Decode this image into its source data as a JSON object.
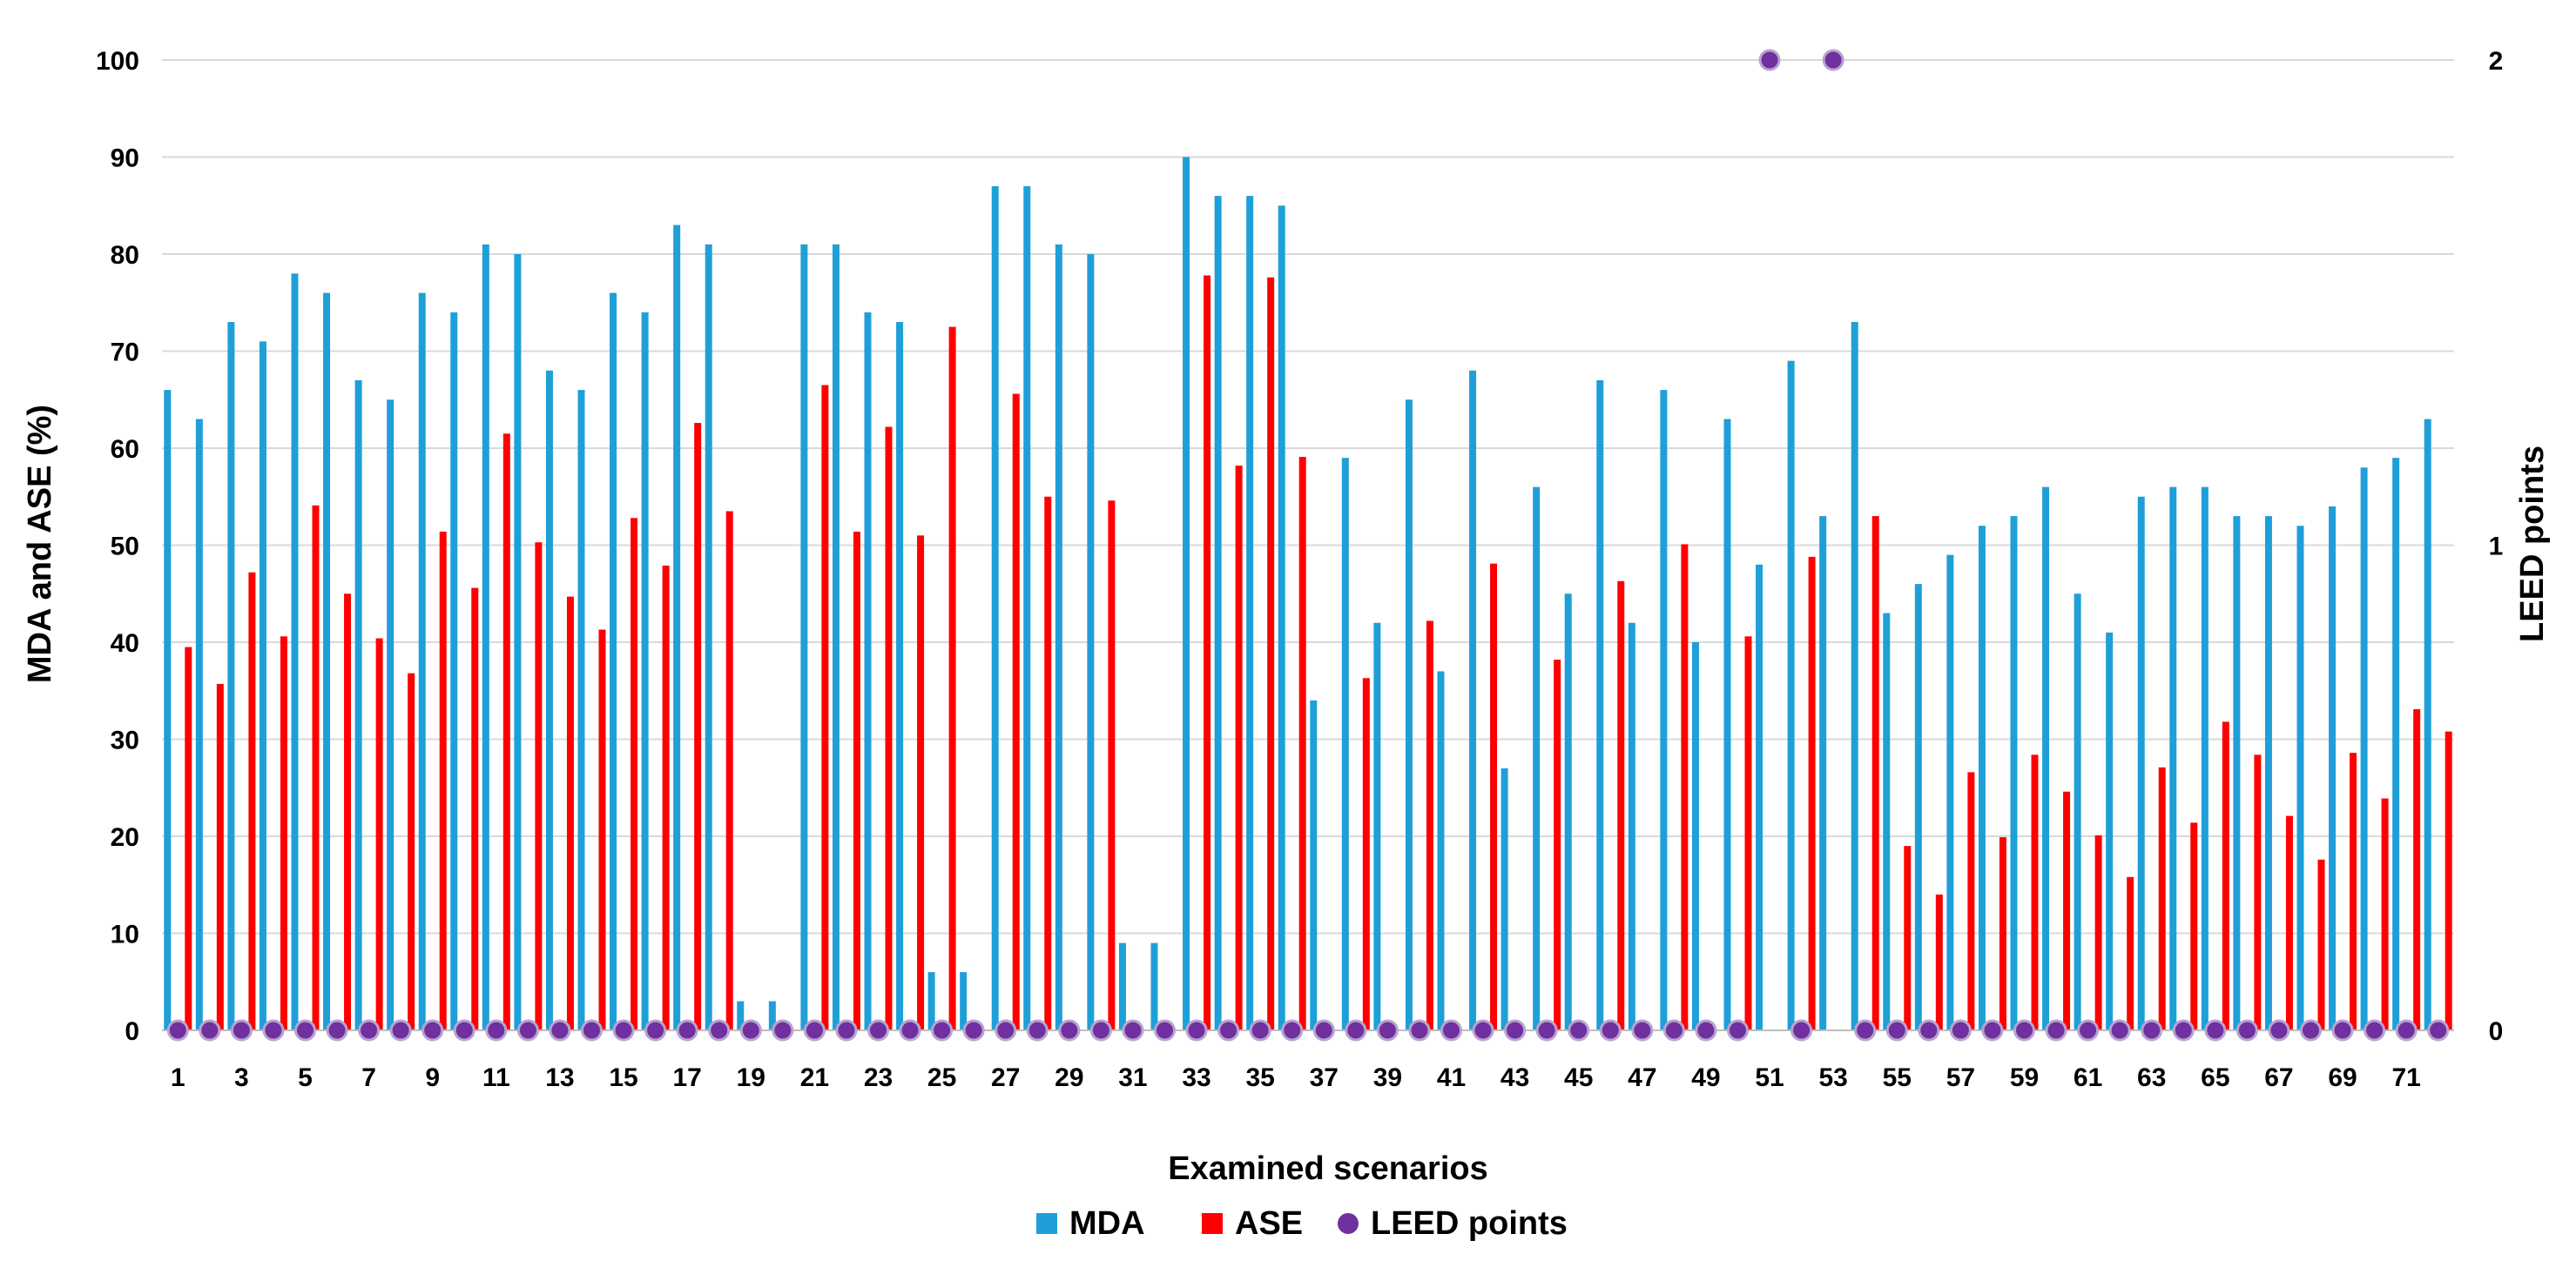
{
  "chart_data": {
    "type": "bar",
    "xlabel": "Examined scenarios",
    "ylabel": "MDA and ASE (%)",
    "y2label": "LEED points",
    "ylim": [
      0,
      100
    ],
    "y2lim": [
      0,
      2
    ],
    "yticks": [
      "0",
      "10",
      "20",
      "30",
      "40",
      "50",
      "60",
      "70",
      "80",
      "90",
      "100"
    ],
    "y2ticks": [
      "0",
      "1",
      "2"
    ],
    "categories": [
      "1",
      "2",
      "3",
      "4",
      "5",
      "6",
      "7",
      "8",
      "9",
      "10",
      "11",
      "12",
      "13",
      "14",
      "15",
      "16",
      "17",
      "18",
      "19",
      "20",
      "21",
      "22",
      "23",
      "24",
      "25",
      "26",
      "27",
      "28",
      "29",
      "30",
      "31",
      "32",
      "33",
      "34",
      "35",
      "36",
      "37",
      "38",
      "39",
      "40",
      "41",
      "42",
      "43",
      "44",
      "45",
      "46",
      "47",
      "48",
      "49",
      "50",
      "51",
      "52",
      "53",
      "54",
      "55",
      "56",
      "57",
      "58",
      "59",
      "60",
      "61",
      "62",
      "63",
      "64",
      "65",
      "66",
      "67",
      "68",
      "69",
      "70",
      "71",
      "72"
    ],
    "xtick_labels": [
      "1",
      "3",
      "5",
      "7",
      "9",
      "11",
      "13",
      "15",
      "17",
      "19",
      "21",
      "23",
      "25",
      "27",
      "29",
      "31",
      "33",
      "35",
      "37",
      "39",
      "41",
      "43",
      "45",
      "47",
      "49",
      "51",
      "53",
      "55",
      "57",
      "59",
      "61",
      "63",
      "65",
      "67",
      "69",
      "71"
    ],
    "series": [
      {
        "name": "MDA",
        "color": "#1f9fd8",
        "axis": "left",
        "type": "bar",
        "values": [
          66,
          63,
          73,
          71,
          78,
          76,
          67,
          65,
          76,
          74,
          81,
          80,
          68,
          66,
          76,
          74,
          83,
          81,
          3,
          3,
          81,
          81,
          74,
          73,
          6,
          6,
          87,
          87,
          81,
          80,
          9,
          9,
          90,
          86,
          86,
          85,
          34,
          59,
          42,
          65,
          37,
          68,
          27,
          56,
          45,
          67,
          42,
          66,
          40,
          63,
          48,
          69,
          53,
          73,
          43,
          46,
          49,
          52,
          53,
          56,
          45,
          41,
          55,
          56,
          56,
          53,
          53,
          52,
          54,
          58,
          59,
          63
        ]
      },
      {
        "name": "ASE",
        "color": "#ff0000",
        "axis": "left",
        "type": "bar",
        "values": [
          39.5,
          35.7,
          47.2,
          40.6,
          54.1,
          45.0,
          40.4,
          36.8,
          51.4,
          45.6,
          61.5,
          50.3,
          44.7,
          41.3,
          52.8,
          47.9,
          62.6,
          53.5,
          0,
          0,
          66.5,
          51.4,
          62.2,
          51.0,
          72.5,
          0,
          65.6,
          55.0,
          0,
          54.6,
          0,
          0,
          77.8,
          58.2,
          77.6,
          59.1,
          0,
          36.3,
          0,
          42.2,
          0,
          48.1,
          0,
          38.2,
          0,
          46.3,
          0,
          50.1,
          0,
          40.6,
          0,
          48.8,
          0,
          53.0,
          19.0,
          14.0,
          26.6,
          19.9,
          28.4,
          24.6,
          20.1,
          15.8,
          27.1,
          21.4,
          31.8,
          28.4,
          22.1,
          17.6,
          28.6,
          23.9,
          33.1,
          30.8
        ]
      },
      {
        "name": "LEED points",
        "color": "#7030a0",
        "axis": "right",
        "type": "scatter",
        "values": [
          0,
          0,
          0,
          0,
          0,
          0,
          0,
          0,
          0,
          0,
          0,
          0,
          0,
          0,
          0,
          0,
          0,
          0,
          0,
          0,
          0,
          0,
          0,
          0,
          0,
          0,
          0,
          0,
          0,
          0,
          0,
          0,
          0,
          0,
          0,
          0,
          0,
          0,
          0,
          0,
          0,
          0,
          0,
          0,
          0,
          0,
          0,
          0,
          0,
          0,
          2,
          0,
          2,
          0,
          0,
          0,
          0,
          0,
          0,
          0,
          0,
          0,
          0,
          0,
          0,
          0,
          0,
          0,
          0,
          0,
          0,
          0
        ]
      }
    ],
    "legend": [
      "MDA",
      "ASE",
      "LEED points"
    ],
    "legend_position": "bottom"
  }
}
